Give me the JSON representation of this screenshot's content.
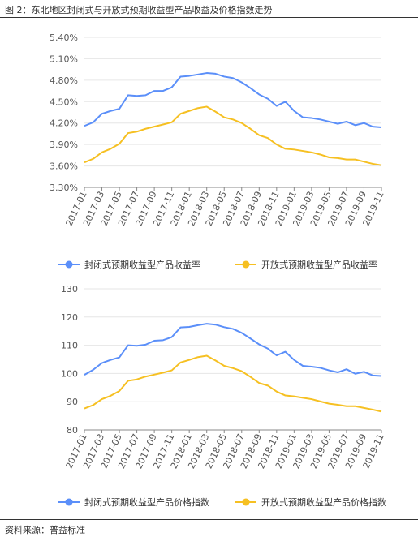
{
  "figure": {
    "title": "图 2：东北地区封闭式与开放式预期收益型产品收益及价格指数走势",
    "source": "资料来源：普益标准"
  },
  "colors": {
    "series1": "#5b8ff9",
    "series2": "#f6c022",
    "grid": "#e6e6e6",
    "axis": "#888888"
  },
  "chart_data": [
    {
      "type": "line",
      "x": [
        "2017-01",
        "2017-02",
        "2017-03",
        "2017-04",
        "2017-05",
        "2017-06",
        "2017-07",
        "2017-08",
        "2017-09",
        "2017-10",
        "2017-11",
        "2017-12",
        "2018-01",
        "2018-02",
        "2018-03",
        "2018-04",
        "2018-05",
        "2018-06",
        "2018-07",
        "2018-08",
        "2018-09",
        "2018-10",
        "2018-11",
        "2018-12",
        "2019-01",
        "2019-02",
        "2019-03",
        "2019-04",
        "2019-05",
        "2019-06",
        "2019-07",
        "2019-08",
        "2019-09",
        "2019-10",
        "2019-11"
      ],
      "x_ticks": [
        "2017-01",
        "2017-03",
        "2017-05",
        "2017-07",
        "2017-09",
        "2017-11",
        "2018-01",
        "2018-03",
        "2018-05",
        "2018-07",
        "2018-09",
        "2018-11",
        "2019-01",
        "2019-03",
        "2019-05",
        "2019-07",
        "2019-09",
        "2019-11"
      ],
      "y_ticks": [
        "3.30%",
        "3.60%",
        "3.90%",
        "4.20%",
        "4.50%",
        "4.80%",
        "5.10%",
        "5.40%"
      ],
      "ylim": [
        3.3,
        5.4
      ],
      "legend_position": "bottom",
      "series": [
        {
          "name": "封闭式预期收益型产品收益率",
          "values": [
            4.16,
            4.21,
            4.33,
            4.37,
            4.4,
            4.59,
            4.58,
            4.59,
            4.65,
            4.65,
            4.7,
            4.85,
            4.86,
            4.88,
            4.9,
            4.89,
            4.85,
            4.83,
            4.77,
            4.69,
            4.6,
            4.54,
            4.44,
            4.5,
            4.37,
            4.28,
            4.27,
            4.25,
            4.22,
            4.19,
            4.22,
            4.17,
            4.2,
            4.15,
            4.14
          ]
        },
        {
          "name": "开放式预期收益型产品收益率",
          "values": [
            3.65,
            3.7,
            3.79,
            3.84,
            3.91,
            4.06,
            4.08,
            4.12,
            4.15,
            4.18,
            4.21,
            4.33,
            4.37,
            4.41,
            4.43,
            4.36,
            4.28,
            4.25,
            4.2,
            4.12,
            4.03,
            3.99,
            3.9,
            3.84,
            3.83,
            3.81,
            3.79,
            3.76,
            3.72,
            3.71,
            3.69,
            3.69,
            3.66,
            3.63,
            3.61
          ]
        }
      ]
    },
    {
      "type": "line",
      "x": [
        "2017-01",
        "2017-02",
        "2017-03",
        "2017-04",
        "2017-05",
        "2017-06",
        "2017-07",
        "2017-08",
        "2017-09",
        "2017-10",
        "2017-11",
        "2017-12",
        "2018-01",
        "2018-02",
        "2018-03",
        "2018-04",
        "2018-05",
        "2018-06",
        "2018-07",
        "2018-08",
        "2018-09",
        "2018-10",
        "2018-11",
        "2018-12",
        "2019-01",
        "2019-02",
        "2019-03",
        "2019-04",
        "2019-05",
        "2019-06",
        "2019-07",
        "2019-08",
        "2019-09",
        "2019-10",
        "2019-11"
      ],
      "x_ticks": [
        "2017-01",
        "2017-03",
        "2017-05",
        "2017-07",
        "2017-09",
        "2017-11",
        "2018-01",
        "2018-03",
        "2018-05",
        "2018-07",
        "2018-09",
        "2018-11",
        "2019-01",
        "2019-03",
        "2019-05",
        "2019-07",
        "2019-09",
        "2019-11"
      ],
      "y_ticks": [
        "80",
        "90",
        "100",
        "110",
        "120",
        "130"
      ],
      "ylim": [
        80,
        130
      ],
      "legend_position": "bottom",
      "series": [
        {
          "name": "封闭式预期收益型产品价格指数",
          "values": [
            99.5,
            101.3,
            103.7,
            104.8,
            105.7,
            110.0,
            109.8,
            110.2,
            111.6,
            111.8,
            112.9,
            116.3,
            116.5,
            117.1,
            117.6,
            117.3,
            116.4,
            115.8,
            114.4,
            112.4,
            110.3,
            108.8,
            106.4,
            107.7,
            104.8,
            102.7,
            102.4,
            102.0,
            101.1,
            100.4,
            101.5,
            99.9,
            100.6,
            99.3,
            99.1
          ]
        },
        {
          "name": "开放式预期收益型产品价格指数",
          "values": [
            87.6,
            88.8,
            90.9,
            92.1,
            93.8,
            97.4,
            97.9,
            98.9,
            99.6,
            100.3,
            101.1,
            103.9,
            104.8,
            105.8,
            106.3,
            104.6,
            102.7,
            101.9,
            100.8,
            98.8,
            96.6,
            95.7,
            93.6,
            92.2,
            91.9,
            91.4,
            90.9,
            90.1,
            89.3,
            88.9,
            88.4,
            88.4,
            87.8,
            87.2,
            86.5
          ]
        }
      ]
    }
  ]
}
